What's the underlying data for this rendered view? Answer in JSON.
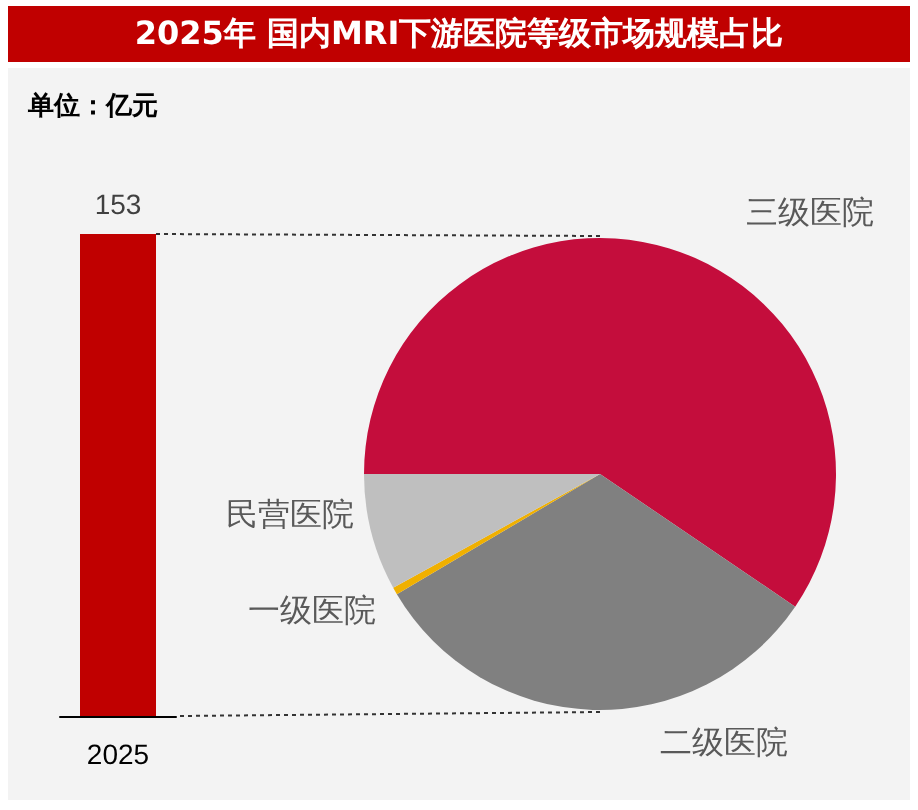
{
  "chart_data": [
    {
      "type": "bar",
      "title": "2025年 国内MRI下游医院等级市场规模占比",
      "ylabel": "单位：亿元",
      "categories": [
        "2025"
      ],
      "values": [
        153
      ],
      "color": "#c00000",
      "data_labels": true
    },
    {
      "type": "pie",
      "categories": [
        "三级医院",
        "二级医院",
        "一级医院",
        "民营医院"
      ],
      "values": [
        59.5,
        32,
        0.5,
        8
      ],
      "colors": [
        "#c40d3c",
        "#808080",
        "#f0b000",
        "#bfbfbf"
      ]
    }
  ]
}
